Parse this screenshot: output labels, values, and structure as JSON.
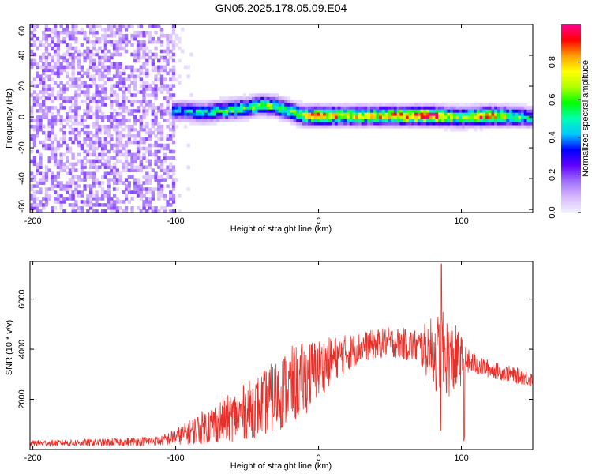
{
  "figure_title": "GN05.2025.178.05.09.E04",
  "chart_data": [
    {
      "type": "heatmap",
      "xlabel": "Height of straight line (km)",
      "ylabel": "Frequency (Hz)",
      "xlim": [
        -202,
        150
      ],
      "ylim": [
        -62,
        60
      ],
      "xticks": [
        -200,
        -100,
        0,
        100
      ],
      "yticks": [
        60,
        40,
        20,
        0,
        -20,
        -40,
        -60
      ],
      "colorbar": {
        "label": "Normalized spectral amplitude",
        "range": [
          0.0,
          1.0
        ],
        "ticks": [
          0.0,
          0.2,
          0.4,
          0.6,
          0.8
        ],
        "colors": [
          "#f0f0ff",
          "#d8b8ff",
          "#a070ff",
          "#6000ff",
          "#0000ff",
          "#00c8ff",
          "#00ffb0",
          "#00ff00",
          "#b0ff00",
          "#ffff00",
          "#ffa000",
          "#ff0000",
          "#ff0090"
        ]
      },
      "noise_region_x": [
        -202,
        -100
      ],
      "noise_amplitude_typical": 0.12,
      "band_center_freq": [
        {
          "x": -100,
          "y": 4
        },
        {
          "x": -90,
          "y": 4
        },
        {
          "x": -80,
          "y": 3
        },
        {
          "x": -70,
          "y": 4
        },
        {
          "x": -60,
          "y": 5
        },
        {
          "x": -50,
          "y": 6
        },
        {
          "x": -40,
          "y": 8
        },
        {
          "x": -30,
          "y": 7
        },
        {
          "x": -20,
          "y": 4
        },
        {
          "x": -10,
          "y": 1
        },
        {
          "x": 0,
          "y": 1
        },
        {
          "x": 20,
          "y": 1
        },
        {
          "x": 40,
          "y": 1
        },
        {
          "x": 60,
          "y": 1
        },
        {
          "x": 80,
          "y": 1
        },
        {
          "x": 100,
          "y": 0
        },
        {
          "x": 120,
          "y": 1
        },
        {
          "x": 150,
          "y": 0
        }
      ],
      "band_peak_amplitude": [
        {
          "x": -100,
          "y": 0.4
        },
        {
          "x": -80,
          "y": 0.45
        },
        {
          "x": -60,
          "y": 0.55
        },
        {
          "x": -40,
          "y": 0.6
        },
        {
          "x": -20,
          "y": 0.55
        },
        {
          "x": 0,
          "y": 0.85
        },
        {
          "x": 20,
          "y": 0.7
        },
        {
          "x": 40,
          "y": 0.75
        },
        {
          "x": 60,
          "y": 0.85
        },
        {
          "x": 80,
          "y": 0.9
        },
        {
          "x": 100,
          "y": 0.6
        },
        {
          "x": 115,
          "y": 0.85
        },
        {
          "x": 150,
          "y": 0.45
        }
      ]
    },
    {
      "type": "line",
      "xlabel": "Height of straight line (km)",
      "ylabel": "SNR (10 * v/v)",
      "xlim": [
        -202,
        150
      ],
      "ylim": [
        0,
        7500
      ],
      "xticks": [
        -200,
        -100,
        0,
        100
      ],
      "yticks": [
        2000,
        4000,
        6000
      ],
      "series": [
        {
          "color": "#e8302a",
          "envelope": [
            {
              "x": -202,
              "mean": 250,
              "spread": 120
            },
            {
              "x": -150,
              "mean": 280,
              "spread": 150
            },
            {
              "x": -110,
              "mean": 350,
              "spread": 200
            },
            {
              "x": -95,
              "mean": 600,
              "spread": 400
            },
            {
              "x": -80,
              "mean": 900,
              "spread": 700
            },
            {
              "x": -60,
              "mean": 1300,
              "spread": 1000
            },
            {
              "x": -40,
              "mean": 1800,
              "spread": 1300
            },
            {
              "x": -20,
              "mean": 2500,
              "spread": 1600
            },
            {
              "x": -5,
              "mean": 3000,
              "spread": 1400
            },
            {
              "x": 10,
              "mean": 3600,
              "spread": 900
            },
            {
              "x": 30,
              "mean": 4100,
              "spread": 600
            },
            {
              "x": 50,
              "mean": 4300,
              "spread": 600
            },
            {
              "x": 70,
              "mean": 4100,
              "spread": 700
            },
            {
              "x": 85,
              "mean": 3800,
              "spread": 1800
            },
            {
              "x": 95,
              "mean": 3600,
              "spread": 1500
            },
            {
              "x": 105,
              "mean": 3500,
              "spread": 500
            },
            {
              "x": 120,
              "mean": 3200,
              "spread": 350
            },
            {
              "x": 150,
              "mean": 2800,
              "spread": 300
            }
          ],
          "peak_max": {
            "x": 86,
            "y": 7400
          },
          "dips": [
            {
              "x": 86,
              "y": 400
            },
            {
              "x": 102,
              "y": 300
            }
          ]
        }
      ]
    }
  ]
}
